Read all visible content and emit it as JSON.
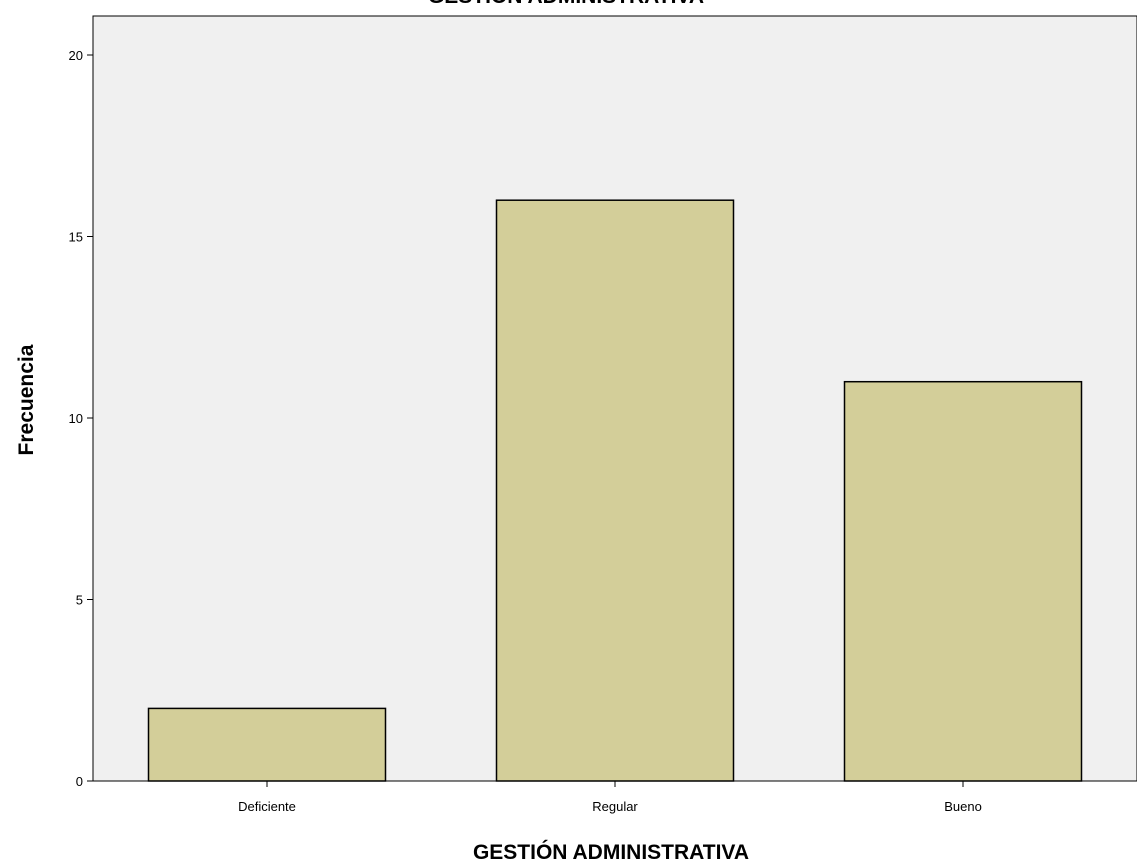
{
  "chart_data": {
    "type": "bar",
    "title": "GESTIÓN ADMINISTRATIVA",
    "xlabel": "GESTIÓN ADMINISTRATIVA",
    "ylabel": "Frecuencia",
    "categories": [
      "Deficiente",
      "Regular",
      "Bueno"
    ],
    "values": [
      2,
      16,
      11
    ],
    "ylim": [
      0,
      21
    ],
    "yticks": [
      0,
      5,
      10,
      15,
      20
    ],
    "ytick_labels": [
      "0",
      "5",
      "10",
      "15",
      "20"
    ],
    "grid": false,
    "legend": "none",
    "colors": {
      "bar_fill": "#d3ce99",
      "bar_stroke": "#000000",
      "plot_bg": "#f0f0f0"
    }
  }
}
